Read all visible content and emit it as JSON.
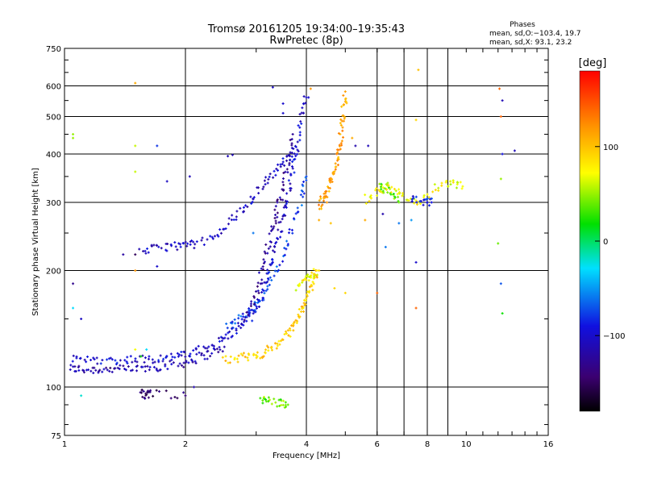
{
  "chart_data": {
    "type": "scatter",
    "title": "Tromsø 20161205 19:34:00–19:35:43",
    "subtitle": "RwPretec (8p)",
    "xlabel": "Frequency [MHz]",
    "ylabel": "Stationary phase Virtual Height [km]",
    "x_scale": "log",
    "y_scale": "log",
    "xlim": [
      1,
      16
    ],
    "ylim": [
      75,
      750
    ],
    "x_ticks": [
      1,
      2,
      4,
      6,
      8,
      10,
      16
    ],
    "x_tick_labels": [
      "1",
      "2",
      "4",
      "6",
      "8",
      "10",
      "16"
    ],
    "x_grid": [
      2,
      4,
      6,
      7,
      8,
      9
    ],
    "y_ticks": [
      75,
      100,
      200,
      300,
      400,
      500,
      600,
      750
    ],
    "y_tick_labels": [
      "75",
      "100",
      "200",
      "300",
      "400",
      "500",
      "600",
      "750"
    ],
    "y_grid": [
      100,
      200,
      300,
      400,
      500,
      600
    ],
    "grid": true,
    "phase_stats": {
      "heading": "Phases",
      "line_o": "mean, sd,O:−103.4, 19.7",
      "line_x": "mean, sd,X:  93.1, 23.2"
    },
    "colorbar": {
      "label": "[deg]",
      "range": [
        -180,
        180
      ],
      "ticks": [
        100,
        0,
        -100
      ],
      "tick_labels": [
        "100",
        "0",
        "−100"
      ]
    },
    "traces": [
      {
        "name": "",
        "phase": -115,
        "points": [
          [
            1.03,
            112
          ],
          [
            1.1,
            111
          ],
          [
            1.2,
            111
          ],
          [
            1.3,
            111
          ],
          [
            1.45,
            111
          ],
          [
            1.6,
            112
          ],
          [
            1.75,
            113
          ],
          [
            1.95,
            115
          ],
          [
            2.1,
            118
          ],
          [
            2.3,
            122
          ],
          [
            2.5,
            127
          ]
        ]
      },
      {
        "name": "",
        "phase": -100,
        "points": [
          [
            1.05,
            118
          ],
          [
            1.15,
            118
          ],
          [
            1.3,
            117
          ],
          [
            1.45,
            118
          ],
          [
            1.6,
            118
          ],
          [
            1.75,
            119
          ],
          [
            1.9,
            120
          ],
          [
            2.05,
            122
          ],
          [
            2.25,
            126
          ],
          [
            2.45,
            132
          ],
          [
            2.6,
            138
          ],
          [
            2.75,
            145
          ],
          [
            2.9,
            152
          ],
          [
            3.0,
            160
          ],
          [
            3.1,
            175
          ],
          [
            3.2,
            195
          ],
          [
            3.3,
            215
          ],
          [
            3.4,
            245
          ],
          [
            3.5,
            275
          ],
          [
            3.6,
            310
          ],
          [
            3.7,
            360
          ],
          [
            3.8,
            420
          ],
          [
            3.9,
            500
          ],
          [
            4.0,
            560
          ]
        ]
      },
      {
        "name": "",
        "phase": -75,
        "points": [
          [
            2.5,
            140
          ],
          [
            2.7,
            150
          ],
          [
            2.9,
            158
          ],
          [
            3.1,
            170
          ],
          [
            3.3,
            190
          ],
          [
            3.5,
            220
          ],
          [
            3.7,
            260
          ],
          [
            3.9,
            310
          ],
          [
            4.0,
            350
          ]
        ]
      },
      {
        "name": "",
        "phase": -125,
        "points": [
          [
            2.8,
            150
          ],
          [
            3.0,
            170
          ],
          [
            3.1,
            200
          ],
          [
            3.2,
            230
          ],
          [
            3.3,
            260
          ],
          [
            3.4,
            290
          ],
          [
            3.5,
            330
          ],
          [
            3.6,
            380
          ],
          [
            3.7,
            450
          ]
        ]
      },
      {
        "name": "",
        "phase": -105,
        "points": [
          [
            1.55,
            225
          ],
          [
            1.7,
            228
          ],
          [
            1.85,
            232
          ],
          [
            2.0,
            232
          ],
          [
            2.15,
            235
          ],
          [
            2.4,
            245
          ],
          [
            2.6,
            270
          ],
          [
            2.8,
            290
          ],
          [
            3.0,
            315
          ],
          [
            3.2,
            345
          ],
          [
            3.4,
            370
          ],
          [
            3.6,
            390
          ],
          [
            3.8,
            410
          ]
        ]
      },
      {
        "name": "",
        "phase": 95,
        "points": [
          [
            2.5,
            118
          ],
          [
            2.7,
            119
          ],
          [
            2.9,
            120
          ],
          [
            3.1,
            122
          ],
          [
            3.3,
            126
          ],
          [
            3.5,
            133
          ],
          [
            3.65,
            140
          ],
          [
            3.8,
            150
          ],
          [
            3.9,
            160
          ],
          [
            4.0,
            172
          ],
          [
            4.15,
            185
          ],
          [
            4.3,
            200
          ]
        ]
      },
      {
        "name": "",
        "phase": 75,
        "points": [
          [
            3.8,
            180
          ],
          [
            3.95,
            190
          ],
          [
            4.1,
            195
          ],
          [
            4.25,
            200
          ]
        ]
      },
      {
        "name": "",
        "phase": 115,
        "points": [
          [
            4.3,
            290
          ],
          [
            4.4,
            305
          ],
          [
            4.5,
            320
          ],
          [
            4.6,
            340
          ],
          [
            4.7,
            360
          ],
          [
            4.8,
            390
          ],
          [
            4.85,
            420
          ],
          [
            4.9,
            470
          ],
          [
            4.95,
            520
          ],
          [
            5.0,
            580
          ]
        ]
      },
      {
        "name": "",
        "phase": 70,
        "points": [
          [
            5.6,
            305
          ],
          [
            6.0,
            320
          ],
          [
            6.3,
            330
          ],
          [
            6.6,
            320
          ],
          [
            7.0,
            310
          ],
          [
            7.6,
            300
          ],
          [
            8.5,
            330
          ],
          [
            9.2,
            335
          ],
          [
            9.8,
            330
          ]
        ]
      },
      {
        "name": "",
        "phase": 40,
        "points": [
          [
            6.1,
            330
          ],
          [
            6.4,
            320
          ],
          [
            6.8,
            300
          ]
        ]
      },
      {
        "name": "",
        "phase": -90,
        "points": [
          [
            7.3,
            305
          ],
          [
            7.8,
            300
          ],
          [
            8.2,
            300
          ]
        ]
      },
      {
        "name": "",
        "phase": 40,
        "points": [
          [
            3.1,
            93
          ],
          [
            3.2,
            92
          ],
          [
            3.45,
            91
          ],
          [
            3.6,
            90
          ]
        ]
      },
      {
        "name": "",
        "phase": -140,
        "points": [
          [
            1.55,
            97
          ],
          [
            1.6,
            95
          ],
          [
            1.62,
            96
          ],
          [
            2.0,
            95
          ]
        ]
      }
    ],
    "scatter_points": [
      [
        1.5,
        610,
        110
      ],
      [
        1.05,
        450,
        50
      ],
      [
        1.05,
        440,
        50
      ],
      [
        1.5,
        420,
        60
      ],
      [
        1.5,
        360,
        60
      ],
      [
        1.7,
        420,
        -80
      ],
      [
        2.05,
        350,
        -110
      ],
      [
        1.8,
        340,
        -105
      ],
      [
        2.55,
        395,
        -110
      ],
      [
        2.62,
        398,
        -110
      ],
      [
        1.4,
        220,
        -120
      ],
      [
        1.5,
        220,
        -150
      ],
      [
        1.7,
        205,
        -100
      ],
      [
        1.05,
        160,
        -30
      ],
      [
        1.1,
        150,
        -105
      ],
      [
        1.05,
        185,
        -130
      ],
      [
        1.5,
        200,
        120
      ],
      [
        1.55,
        120,
        20
      ],
      [
        1.5,
        125,
        70
      ],
      [
        1.6,
        125,
        -30
      ],
      [
        4.1,
        590,
        120
      ],
      [
        4.05,
        560,
        -100
      ],
      [
        4.3,
        270,
        110
      ],
      [
        4.6,
        265,
        100
      ],
      [
        4.7,
        180,
        90
      ],
      [
        5.2,
        440,
        110
      ],
      [
        5.3,
        420,
        -115
      ],
      [
        5.0,
        175,
        90
      ],
      [
        5.7,
        420,
        -110
      ],
      [
        5.6,
        270,
        110
      ],
      [
        6.8,
        265,
        -60
      ],
      [
        7.3,
        270,
        -50
      ],
      [
        6.2,
        280,
        -115
      ],
      [
        7.5,
        490,
        90
      ],
      [
        7.6,
        660,
        100
      ],
      [
        7.5,
        210,
        -100
      ],
      [
        7.5,
        160,
        140
      ],
      [
        6.0,
        175,
        140
      ],
      [
        6.3,
        230,
        -60
      ],
      [
        8.0,
        300,
        -95
      ],
      [
        9.0,
        330,
        60
      ],
      [
        12.1,
        590,
        140
      ],
      [
        12.3,
        550,
        -110
      ],
      [
        12.2,
        500,
        140
      ],
      [
        12.3,
        400,
        -90
      ],
      [
        13.2,
        408,
        -110
      ],
      [
        12.2,
        345,
        50
      ],
      [
        12.0,
        235,
        40
      ],
      [
        12.2,
        185,
        -70
      ],
      [
        12.3,
        155,
        20
      ],
      [
        3.3,
        595,
        -105
      ],
      [
        3.5,
        540,
        -100
      ],
      [
        3.5,
        510,
        -100
      ],
      [
        4.5,
        300,
        120
      ],
      [
        2.95,
        250,
        -60
      ],
      [
        1.1,
        95,
        -20
      ],
      [
        1.3,
        112,
        -150
      ],
      [
        2.1,
        100,
        -115
      ]
    ]
  }
}
